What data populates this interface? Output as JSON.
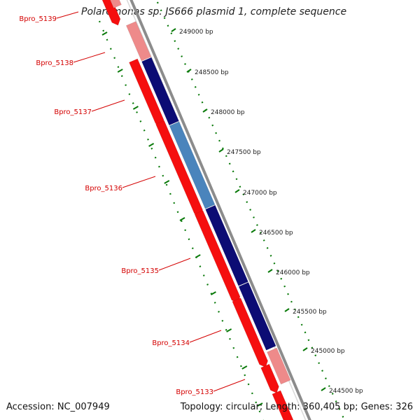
{
  "title": "Polaromonas sp. JS666 plasmid 1, complete sequence",
  "footer": {
    "accession": "Accession: NC_007949",
    "topology": "Topology: circular; Length: 360,405 bp; Genes: 326"
  },
  "colors": {
    "forward_gene": "#f50f0f",
    "forward_gene_light": "#ee8a8a",
    "reverse_gene_dark": "#0c0c74",
    "reverse_gene_steel": "#4a84bc",
    "backbone": "#8c8c8c",
    "ticks": "#0a7a0a",
    "label": "#d40000"
  },
  "scale_labels": [
    "249000 bp",
    "248500 bp",
    "248000 bp",
    "247500 bp",
    "247000 bp",
    "246500 bp",
    "246000 bp",
    "245500 bp",
    "245000 bp",
    "244500 bp"
  ],
  "gene_labels": [
    "Bpro_5139",
    "Bpro_5138",
    "Bpro_5137",
    "Bpro_5136",
    "Bpro_5135",
    "Bpro_5134",
    "Bpro_5133"
  ]
}
